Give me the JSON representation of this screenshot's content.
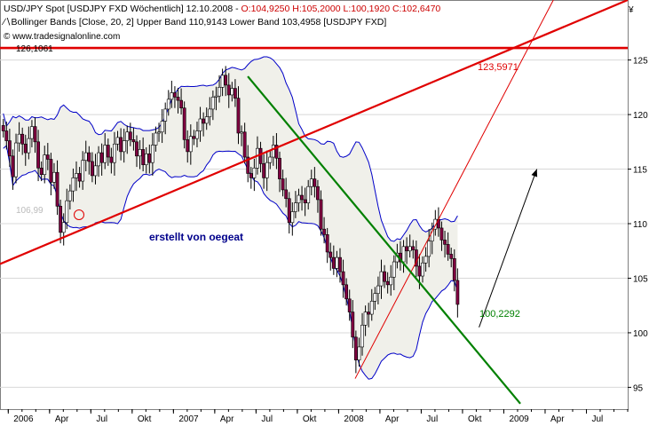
{
  "header": {
    "line1_left": "USD/JPY Spot [USDJPY FXD  Wöchentlich] 12.10.2008 - ",
    "line1_ohlc": "O:104,9250 H:105,2000 L:100,1920 C:102,6470",
    "line2": "Bollinger Bands [Close, 20, 2] Upper Band 110,9143 Lower Band 103,4958 [USDJPY FXD]",
    "watermark": "© www.tradesignalonline.com",
    "currency_symbol": "¥"
  },
  "colors": {
    "candle_up": "#ffffff",
    "candle_down": "#800040",
    "bollinger": "#0000c8",
    "band_fill": "#f0f0ea",
    "red_line": "#e00000",
    "green_line": "#008000",
    "arrow": "#000000",
    "grid": "#d8d8d8",
    "blue_text": "#00008b"
  },
  "annotations": {
    "author": "erstellt von oegeat",
    "red_label": "123,5971",
    "green_label": "100,2292",
    "low_label": "106,99",
    "top_label": "126,1061"
  },
  "chart_data": {
    "type": "candlestick",
    "title": "USD/JPY Spot [USDJPY FXD  Wöchentlich]",
    "y_ticks": [
      95,
      100,
      105,
      110,
      115,
      120,
      125
    ],
    "y_tick_labels": [
      "95",
      "100",
      "105",
      "110",
      "115",
      "120",
      "125"
    ],
    "ylim": [
      93,
      130.5
    ],
    "x_tick_labels": [
      "2006",
      "Apr",
      "Jul",
      "Okt",
      "2007",
      "Apr",
      "Jul",
      "Okt",
      "2008",
      "Apr",
      "Jul",
      "Okt",
      "2009",
      "Apr",
      "Jul"
    ],
    "x_range": [
      2005.95,
      2009.75
    ],
    "closes": [
      118.5,
      117.6,
      116.2,
      114.3,
      117.4,
      118.2,
      117.3,
      116.5,
      117.8,
      118.9,
      117.5,
      115.1,
      114.5,
      116.3,
      115.9,
      113.8,
      114.7,
      111.6,
      109.2,
      110.1,
      112.1,
      113.0,
      114.2,
      114.6,
      113.9,
      115.8,
      116.5,
      115.7,
      114.4,
      115.3,
      116.5,
      115.6,
      117.2,
      116.1,
      115.6,
      117.3,
      117.9,
      116.6,
      117.6,
      118.4,
      117.7,
      117.5,
      116.2,
      116.8,
      115.4,
      116.4,
      115.6,
      117.2,
      118.3,
      118.4,
      119.4,
      120.5,
      121.4,
      122.0,
      121.6,
      121.3,
      120.6,
      117.7,
      116.6,
      118.0,
      117.8,
      118.5,
      119.6,
      119.2,
      119.8,
      120.5,
      121.6,
      121.7,
      122.5,
      123.6,
      122.7,
      121.8,
      122.4,
      121.5,
      118.3,
      118.4,
      116.1,
      114.6,
      114.2,
      115.1,
      116.9,
      115.5,
      114.2,
      115.6,
      116.1,
      117.2,
      116.0,
      114.1,
      113.1,
      112.3,
      110.1,
      111.1,
      111.9,
      112.6,
      112.2,
      111.9,
      113.4,
      114.1,
      113.4,
      112.2,
      109.5,
      109.0,
      107.4,
      106.9,
      105.9,
      106.9,
      105.6,
      104.4,
      103.1,
      101.9,
      99.6,
      97.5,
      98.7,
      100.7,
      101.9,
      101.7,
      102.9,
      103.6,
      104.3,
      105.6,
      104.7,
      104.4,
      105.1,
      106.5,
      107.3,
      106.5,
      107.9,
      107.5,
      107.9,
      107.6,
      106.1,
      105.2,
      106.4,
      107.0,
      108.4,
      109.5,
      110.4,
      109.6,
      108.5,
      108.1,
      107.2,
      106.8,
      104.8,
      102.6
    ],
    "series": [
      {
        "name": "USD/JPY Spot",
        "type": "candlestick"
      },
      {
        "name": "Upper Band",
        "last": 110.9143
      },
      {
        "name": "Lower Band",
        "last": 103.4958
      }
    ],
    "lines": [
      {
        "name": "red-support",
        "points": [
          [
            2005.95,
            106.3
          ],
          [
            2009.75,
            130.5
          ]
        ]
      },
      {
        "name": "red-horizontal",
        "points": [
          [
            2005.95,
            126.1061
          ],
          [
            2009.75,
            126.1061
          ]
        ]
      },
      {
        "name": "red-thin",
        "points": [
          [
            2008.1,
            95.8
          ],
          [
            2009.3,
            130.5
          ]
        ]
      },
      {
        "name": "green-downtrend",
        "points": [
          [
            2007.45,
            123.5
          ],
          [
            2009.1,
            93.5
          ]
        ]
      },
      {
        "name": "arrow",
        "points": [
          [
            2008.85,
            100.5
          ],
          [
            2009.2,
            115
          ]
        ]
      }
    ]
  }
}
